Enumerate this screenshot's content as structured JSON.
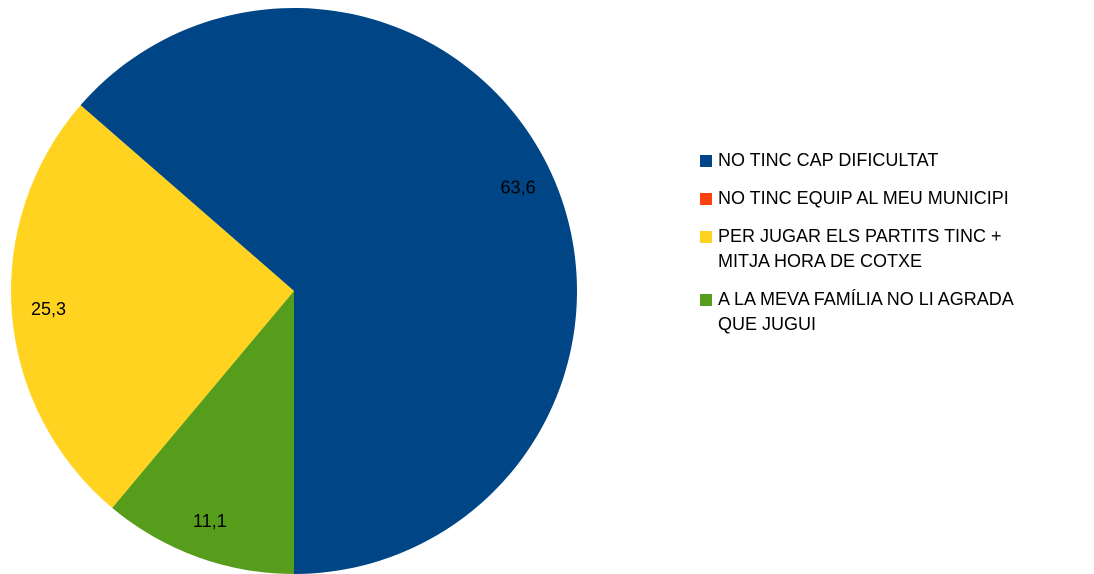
{
  "chart_data": {
    "type": "pie",
    "categories": [
      "NO TINC CAP DIFICULTAT",
      "NO TINC EQUIP AL MEU MUNICIPI",
      "PER JUGAR ELS PARTITS TINC + MITJA HORA DE COTXE",
      "A LA MEVA FAMÍLIA NO LI AGRADA QUE JUGUI"
    ],
    "values": [
      63.6,
      0,
      25.3,
      11.1
    ],
    "value_labels": [
      "63,6",
      null,
      "25,3",
      "11,1"
    ],
    "colors": [
      "#004586",
      "#ff420e",
      "#ffd320",
      "#579d1c"
    ],
    "legend": "right"
  }
}
